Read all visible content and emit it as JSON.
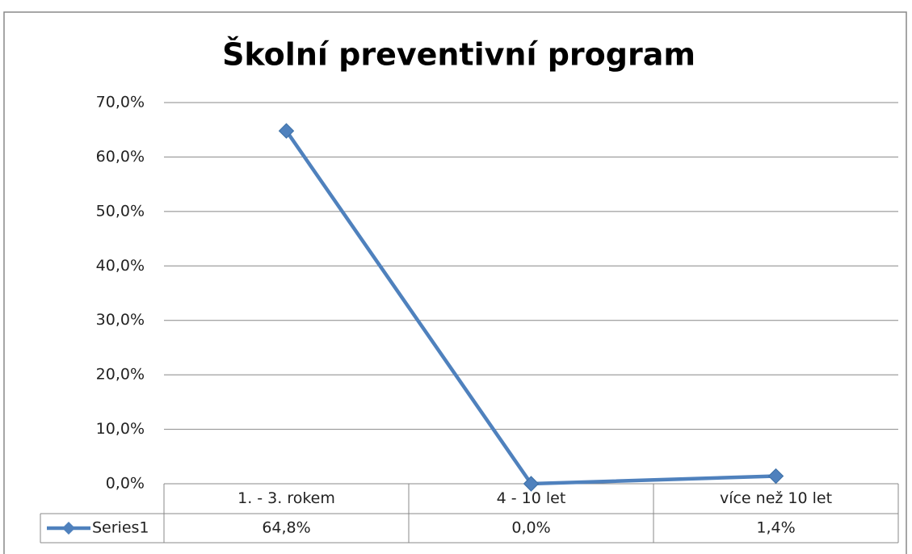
{
  "chart_data": {
    "type": "line",
    "title": "Školní preventivní program",
    "categories": [
      "1. - 3. rokem",
      "4 - 10 let",
      "více než 10 let"
    ],
    "series": [
      {
        "name": "Series1",
        "color": "#4f81bd",
        "values": [
          64.8,
          0.0,
          1.4
        ],
        "value_labels": [
          "64,8%",
          "0,0%",
          "1,4%"
        ]
      }
    ],
    "ylim": [
      0,
      70
    ],
    "yticks": [
      {
        "value": 0,
        "label": "0,0%"
      },
      {
        "value": 10,
        "label": "10,0%"
      },
      {
        "value": 20,
        "label": "20,0%"
      },
      {
        "value": 30,
        "label": "30,0%"
      },
      {
        "value": 40,
        "label": "40,0%"
      },
      {
        "value": 50,
        "label": "50,0%"
      },
      {
        "value": 60,
        "label": "60,0%"
      },
      {
        "value": 70,
        "label": "70,0%"
      }
    ],
    "grid": true
  }
}
